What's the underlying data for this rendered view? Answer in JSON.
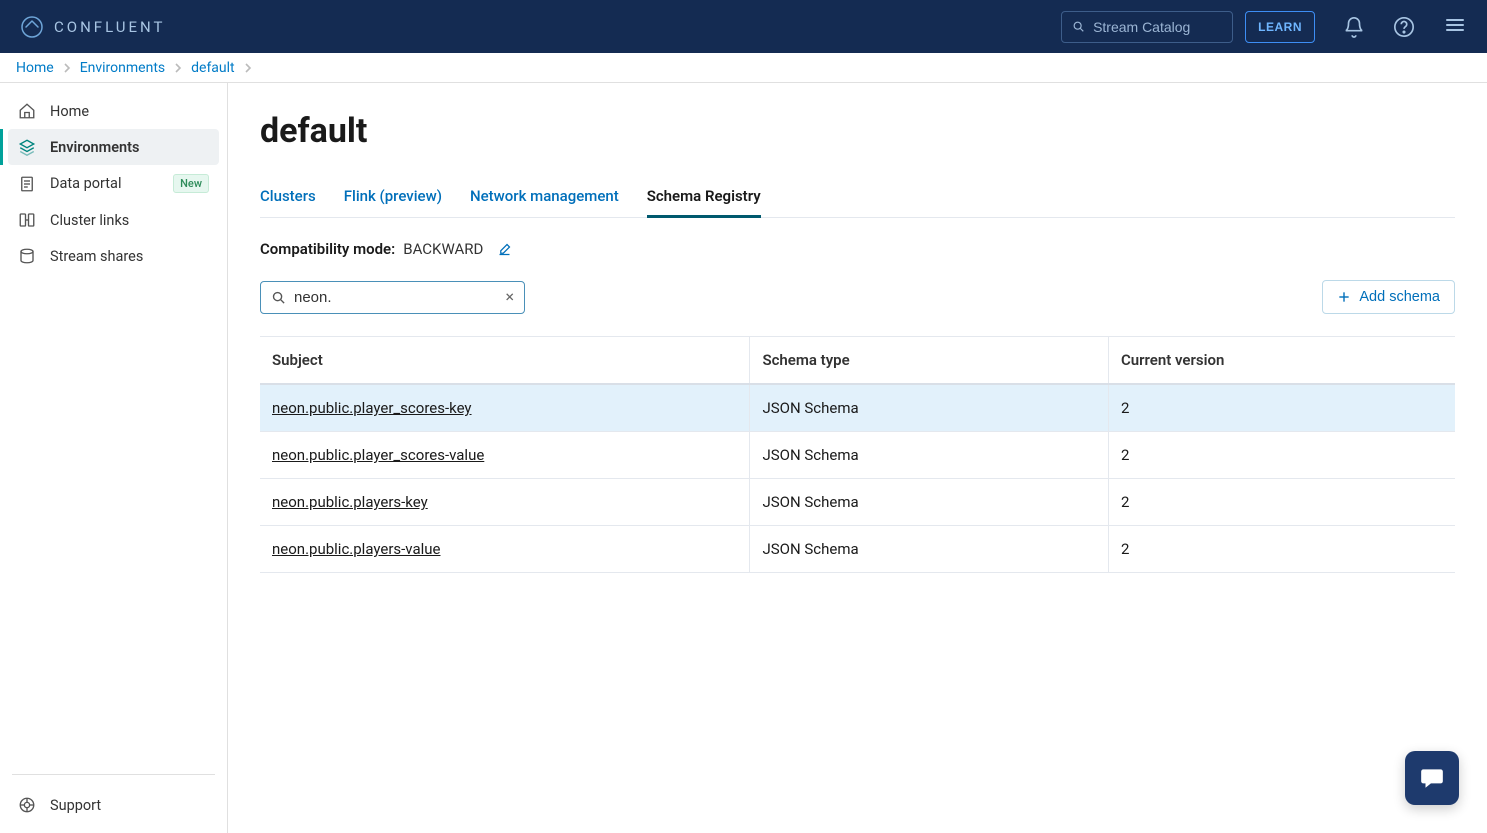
{
  "brand": {
    "name": "CONFLUENT"
  },
  "topbar": {
    "search_placeholder": "Stream Catalog",
    "learn_label": "LEARN"
  },
  "breadcrumbs": [
    {
      "label": "Home",
      "active": true
    },
    {
      "label": "Environments",
      "active": true
    },
    {
      "label": "default",
      "active": true
    }
  ],
  "sidebar": {
    "items": [
      {
        "id": "home",
        "label": "Home",
        "icon": "home",
        "active": false
      },
      {
        "id": "environments",
        "label": "Environments",
        "icon": "layers",
        "active": true
      },
      {
        "id": "data-portal",
        "label": "Data portal",
        "icon": "document",
        "active": false,
        "badge": "New"
      },
      {
        "id": "cluster-links",
        "label": "Cluster links",
        "icon": "link",
        "active": false
      },
      {
        "id": "stream-shares",
        "label": "Stream shares",
        "icon": "database",
        "active": false
      }
    ],
    "support_label": "Support"
  },
  "page": {
    "title": "default",
    "tabs": [
      {
        "id": "clusters",
        "label": "Clusters",
        "active": false
      },
      {
        "id": "flink",
        "label": "Flink (preview)",
        "active": false
      },
      {
        "id": "network",
        "label": "Network management",
        "active": false
      },
      {
        "id": "schema-registry",
        "label": "Schema Registry",
        "active": true
      }
    ],
    "compatibility": {
      "label": "Compatibility mode:",
      "value": "BACKWARD"
    },
    "search_value": "neon.",
    "add_schema_label": "Add schema",
    "table": {
      "columns": [
        "Subject",
        "Schema type",
        "Current version"
      ],
      "rows": [
        {
          "subject": "neon.public.player_scores-key",
          "type": "JSON Schema",
          "version": "2",
          "highlight": true
        },
        {
          "subject": "neon.public.player_scores-value",
          "type": "JSON Schema",
          "version": "2",
          "highlight": false
        },
        {
          "subject": "neon.public.players-key",
          "type": "JSON Schema",
          "version": "2",
          "highlight": false
        },
        {
          "subject": "neon.public.players-value",
          "type": "JSON Schema",
          "version": "2",
          "highlight": false
        }
      ]
    }
  },
  "colors": {
    "topbar_bg": "#142b52",
    "accent_link": "#006fba",
    "active_nav_bar": "#00a19a",
    "row_highlight": "#e2f1fb",
    "border": "#e4e8ee"
  }
}
